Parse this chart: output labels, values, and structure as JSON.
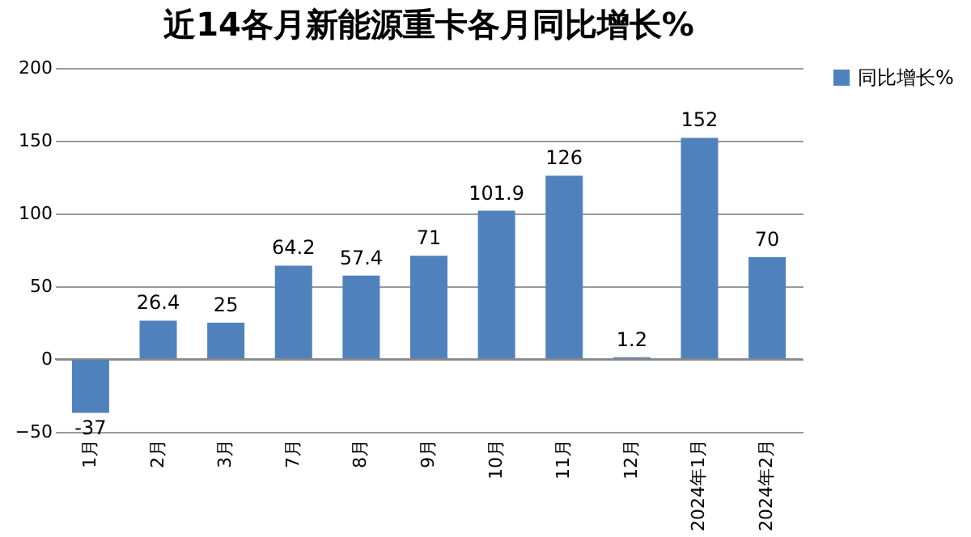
{
  "chart_data": {
    "type": "bar",
    "title": "近14各月新能源重卡各月同比增长%",
    "categories": [
      "1月",
      "2月",
      "3月",
      "7月",
      "8月",
      "9月",
      "10月",
      "11月",
      "12月",
      "2024年1月",
      "2024年2月"
    ],
    "series": [
      {
        "name": "同比增长%",
        "color": "#4f81bd",
        "values": [
          -37,
          26.4,
          25,
          64.2,
          57.4,
          71,
          101.9,
          126,
          1.2,
          152,
          70
        ]
      }
    ],
    "ylim": [
      -50,
      200
    ],
    "yticks": [
      -50,
      0,
      50,
      100,
      150,
      200
    ],
    "grid": "y",
    "legend": "right",
    "data_labels": true
  }
}
